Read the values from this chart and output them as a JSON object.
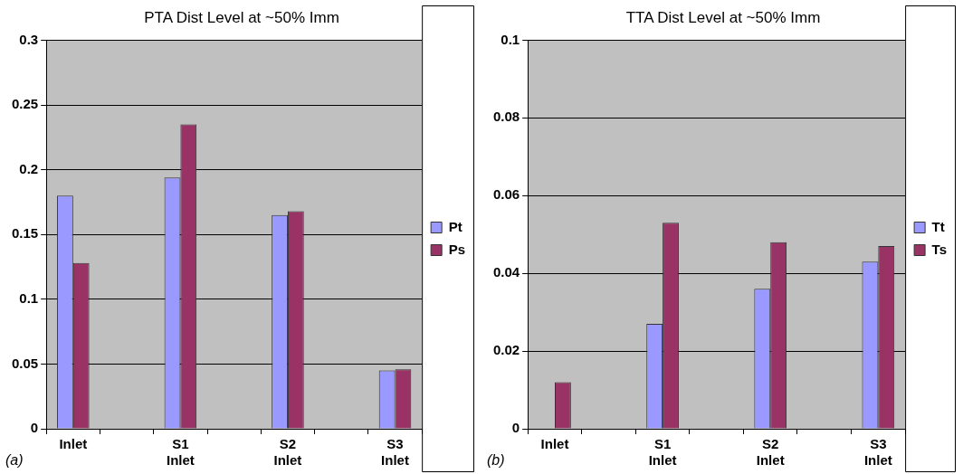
{
  "chart_data": [
    {
      "type": "bar",
      "title": "PTA Dist Level at ~50% Imm",
      "categories": [
        "Inlet",
        null,
        "S1\nInlet",
        null,
        "S2\nInlet",
        null,
        "S3\nInlet"
      ],
      "series": [
        {
          "name": "Pt",
          "color": "#9999ff",
          "values": [
            0.18,
            null,
            0.194,
            null,
            0.165,
            null,
            0.045
          ]
        },
        {
          "name": "Ps",
          "color": "#993366",
          "values": [
            0.128,
            null,
            0.235,
            null,
            0.168,
            null,
            0.046
          ]
        }
      ],
      "ylim": [
        0,
        0.3
      ],
      "yticks": [
        0,
        0.05,
        0.1,
        0.15,
        0.2,
        0.25,
        0.3
      ],
      "grid": "y",
      "legend": "right",
      "annotations": [
        "(a)"
      ]
    },
    {
      "type": "bar",
      "title": "TTA Dist Level at ~50% Imm",
      "categories": [
        "Inlet",
        null,
        "S1\nInlet",
        null,
        "S2\nInlet",
        null,
        "S3\nInlet"
      ],
      "series": [
        {
          "name": "Tt",
          "color": "#9999ff",
          "values": [
            null,
            null,
            0.027,
            null,
            0.036,
            null,
            0.043
          ]
        },
        {
          "name": "Ts",
          "color": "#993366",
          "values": [
            0.012,
            null,
            0.053,
            null,
            0.048,
            null,
            0.047
          ]
        }
      ],
      "ylim": [
        0,
        0.1
      ],
      "yticks": [
        0,
        0.02,
        0.04,
        0.06,
        0.08,
        0.1
      ],
      "grid": "y",
      "legend": "right",
      "annotations": [
        "(b)"
      ]
    }
  ]
}
